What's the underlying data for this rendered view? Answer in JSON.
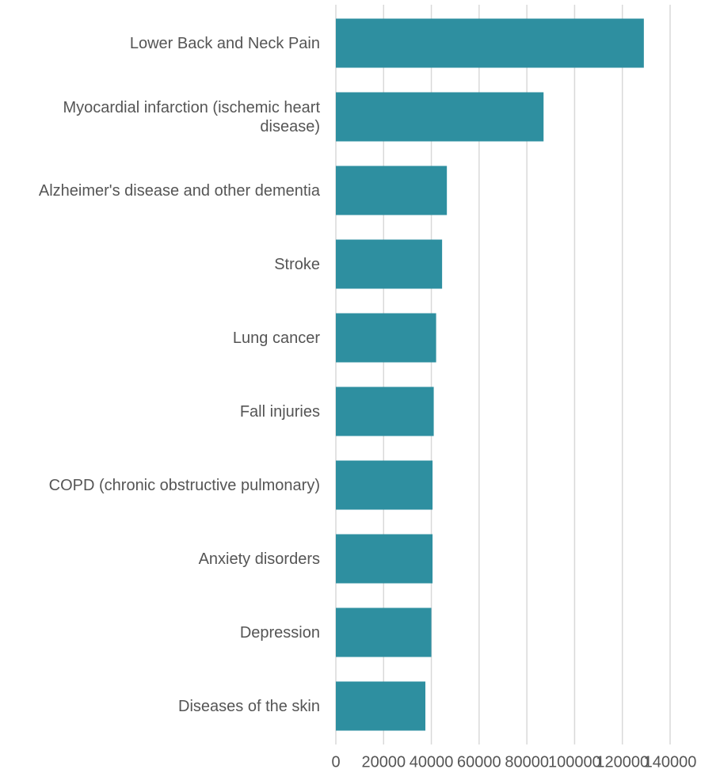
{
  "chart_data": {
    "type": "bar",
    "orientation": "horizontal",
    "categories": [
      "Lower Back and Neck Pain",
      "Myocardial infarction (ischemic heart disease)",
      "Alzheimer's disease and other dementia",
      "Stroke",
      "Lung cancer",
      "Fall injuries",
      "COPD (chronic obstructive pulmonary)",
      "Anxiety disorders",
      "Depression",
      "Diseases of the skin"
    ],
    "values": [
      129000,
      87000,
      46500,
      44500,
      42000,
      41000,
      40500,
      40500,
      40000,
      37500
    ],
    "color": "#2e8fa0",
    "xlim": [
      0,
      140000
    ],
    "xticks": [
      0,
      20000,
      40000,
      60000,
      80000,
      100000,
      120000,
      140000
    ],
    "grid": true
  }
}
